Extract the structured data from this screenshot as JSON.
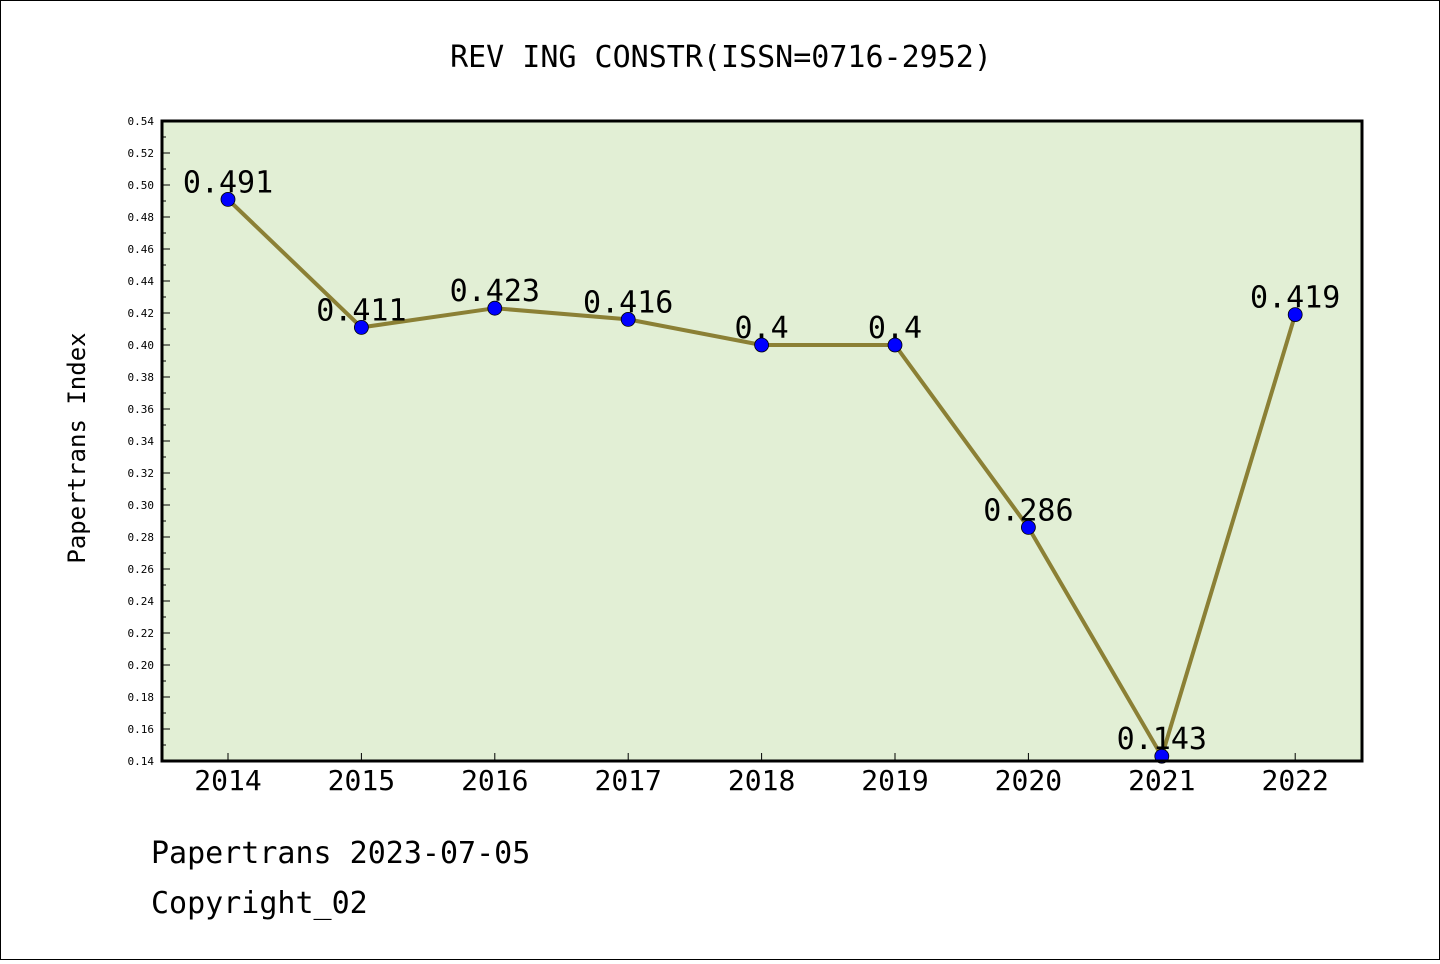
{
  "chart_data": {
    "type": "line",
    "title": "REV ING CONSTR(ISSN=0716-2952)",
    "xlabel": "",
    "ylabel": "Papertrans Index",
    "categories": [
      "2014",
      "2015",
      "2016",
      "2017",
      "2018",
      "2019",
      "2020",
      "2021",
      "2022"
    ],
    "series": [
      {
        "values": [
          0.491,
          0.411,
          0.423,
          0.416,
          0.4,
          0.4,
          0.286,
          0.143,
          0.419
        ],
        "labels": [
          "0.491",
          "0.411",
          "0.423",
          "0.416",
          "0.4",
          "0.4",
          "0.286",
          "0.143",
          "0.419"
        ],
        "line_color": "#8b8035",
        "marker_color": "#0000ff"
      }
    ],
    "ylim": [
      0.14,
      0.54
    ],
    "yticks": [
      "0.14",
      "0.16",
      "0.18",
      "0.20",
      "0.22",
      "0.24",
      "0.26",
      "0.28",
      "0.30",
      "0.32",
      "0.34",
      "0.36",
      "0.38",
      "0.40",
      "0.42",
      "0.44",
      "0.46",
      "0.48",
      "0.50",
      "0.52",
      "0.54"
    ],
    "plot_background": "#e2efd5",
    "grid": false,
    "legend": "none"
  },
  "footer": {
    "line1": "Papertrans 2023-07-05",
    "line2": "Copyright_02"
  }
}
